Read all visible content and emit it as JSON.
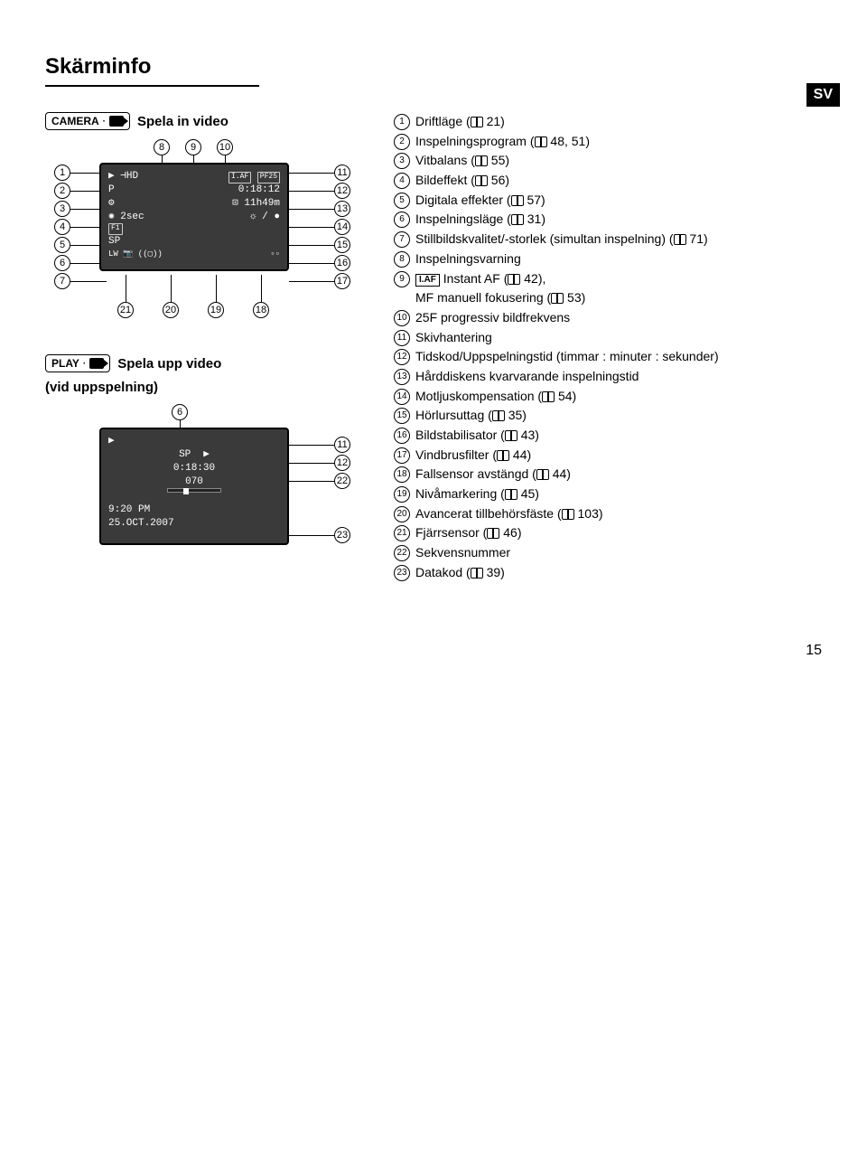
{
  "title": "Skärminfo",
  "sv_label": "SV",
  "page_number": "15",
  "mode_camera": {
    "label": "CAMERA",
    "caption": "Spela in video"
  },
  "mode_play": {
    "label": "PLAY",
    "caption": "Spela upp video",
    "subcaption": "(vid uppspelning)"
  },
  "lcd1": {
    "r1_left": "▶  ⊣HD",
    "r1_right": "I.AF  PF25",
    "r2_left": "P",
    "r2_right": "0:18:12",
    "r3_left": "⚙",
    "r3_right": "⊡ 11h49m",
    "r4_left": "✺ 2sec",
    "r4_right": "☼ / ●",
    "r5_left": "F1",
    "r6_left": "SP",
    "r7_left": "LW  📷  ((▢))",
    "r7_right": "▫▫"
  },
  "lcd2": {
    "r1_left": "▶",
    "r2_left": "SP",
    "r2_right": "▶",
    "r3": "0:18:30",
    "r4": "070",
    "r5": "9:20 PM",
    "r6": "25.OCT.2007"
  },
  "iaf_label": "I.AF",
  "items": {
    "1": {
      "text": "Driftläge",
      "pages": "21"
    },
    "2": {
      "text": "Inspelningsprogram",
      "pages": "48, 51"
    },
    "3": {
      "text": "Vitbalans",
      "pages": "55"
    },
    "4": {
      "text": "Bildeffekt",
      "pages": "56"
    },
    "5": {
      "text": "Digitala effekter",
      "pages": "57"
    },
    "6": {
      "text": "Inspelningsläge",
      "pages": "31"
    },
    "7": {
      "text": "Stillbildskvalitet/-storlek (simultan inspelning)",
      "pages": "71"
    },
    "8": {
      "text": "Inspelningsvarning"
    },
    "9": {
      "text_a": "Instant AF",
      "pages_a": "42",
      "text_b": "MF manuell fokusering",
      "pages_b": "53"
    },
    "10": {
      "text": "25F progressiv bildfrekvens"
    },
    "11": {
      "text": "Skivhantering"
    },
    "12": {
      "text": "Tidskod/Uppspelningstid (timmar : minuter : sekunder)"
    },
    "13": {
      "text": "Hårddiskens kvarvarande inspelningstid"
    },
    "14": {
      "text": "Motljuskompensation",
      "pages": "54"
    },
    "15": {
      "text": "Hörlursuttag",
      "pages": "35"
    },
    "16": {
      "text": "Bildstabilisator",
      "pages": "43"
    },
    "17": {
      "text": "Vindbrusfilter",
      "pages": "44"
    },
    "18": {
      "text": "Fallsensor avstängd",
      "pages": "44"
    },
    "19": {
      "text": "Nivåmarkering",
      "pages": "45"
    },
    "20": {
      "text": "Avancerat tillbehörsfäste",
      "pages": "103"
    },
    "21": {
      "text": "Fjärrsensor",
      "pages": "46"
    },
    "22": {
      "text": "Sekvensnummer"
    },
    "23": {
      "text": "Datakod",
      "pages": "39"
    }
  },
  "colors": {
    "page_bg": "#ffffff",
    "text": "#000000",
    "lcd_bg": "#3a3a3a",
    "lcd_text": "#ffffff"
  }
}
